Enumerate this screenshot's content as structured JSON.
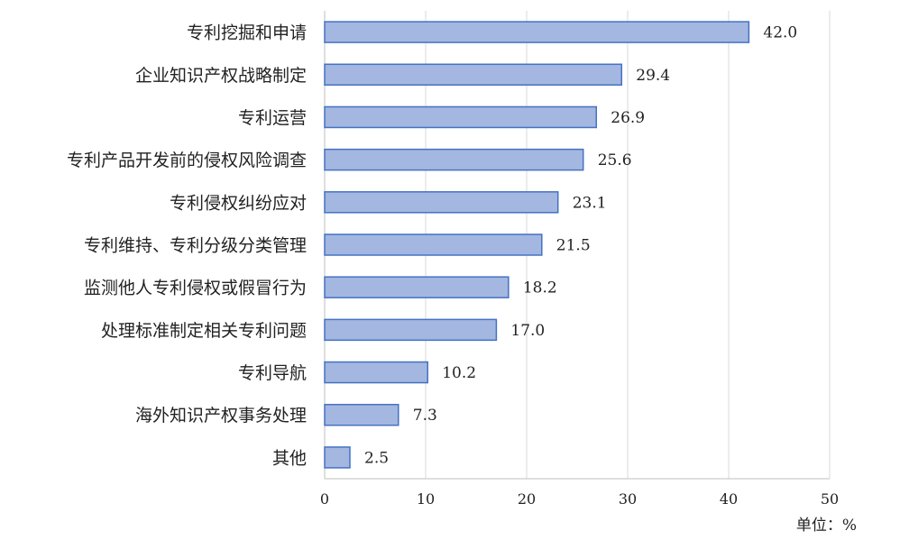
{
  "chart_data": {
    "type": "bar",
    "orientation": "horizontal",
    "categories": [
      "专利挖掘和申请",
      "企业知识产权战略制定",
      "专利运营",
      "专利产品开发前的侵权风险调查",
      "专利侵权纠纷应对",
      "专利维持、专利分级分类管理",
      "监测他人专利侵权或假冒行为",
      "处理标准制定相关专利问题",
      "专利导航",
      "海外知识产权事务处理",
      "其他"
    ],
    "values": [
      42.0,
      29.4,
      26.9,
      25.6,
      23.1,
      21.5,
      18.2,
      17.0,
      10.2,
      7.3,
      2.5
    ],
    "value_labels": [
      "42.0",
      "29.4",
      "26.9",
      "25.6",
      "23.1",
      "21.5",
      "18.2",
      "17.0",
      "10.2",
      "7.3",
      "2.5"
    ],
    "xlim": [
      0,
      50
    ],
    "xticks": [
      0,
      10,
      20,
      30,
      40,
      50
    ],
    "unit_label": "单位：%",
    "grid": "vertical",
    "bar_color": "#a3b7e0",
    "bar_border_color": "#4472c4",
    "grid_color": "#d9d9d9"
  }
}
